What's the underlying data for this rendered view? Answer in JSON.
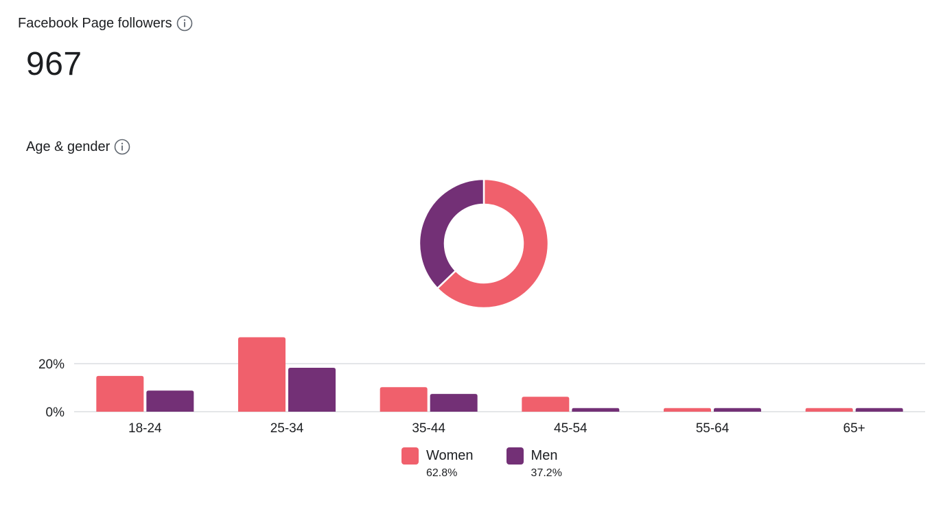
{
  "followers": {
    "title": "Facebook Page followers",
    "count": "967",
    "info_icon": "info-icon"
  },
  "age_gender": {
    "title": "Age & gender",
    "info_icon": "info-icon"
  },
  "colors": {
    "women": "#f0606c",
    "men": "#733076",
    "gridline": "#d3d6db",
    "text": "#1c1e21"
  },
  "legend": [
    {
      "name": "Women",
      "pct": "62.8%"
    },
    {
      "name": "Men",
      "pct": "37.2%"
    }
  ],
  "chart_data": [
    {
      "type": "pie",
      "subtype": "donut",
      "labels": [
        "Women",
        "Men"
      ],
      "values": [
        62.8,
        37.2
      ]
    },
    {
      "type": "bar",
      "categories": [
        "18-24",
        "25-34",
        "35-44",
        "45-54",
        "55-64",
        "65+"
      ],
      "series": [
        {
          "name": "Women",
          "values": [
            14.9,
            31,
            10.2,
            6.2,
            1.5,
            1.5
          ]
        },
        {
          "name": "Men",
          "values": [
            8.8,
            18.3,
            7.4,
            1.5,
            1.5,
            1.5
          ]
        }
      ],
      "y_ticks": [
        "0%",
        "20%"
      ],
      "ylim": [
        0,
        31
      ],
      "grid": true
    }
  ]
}
